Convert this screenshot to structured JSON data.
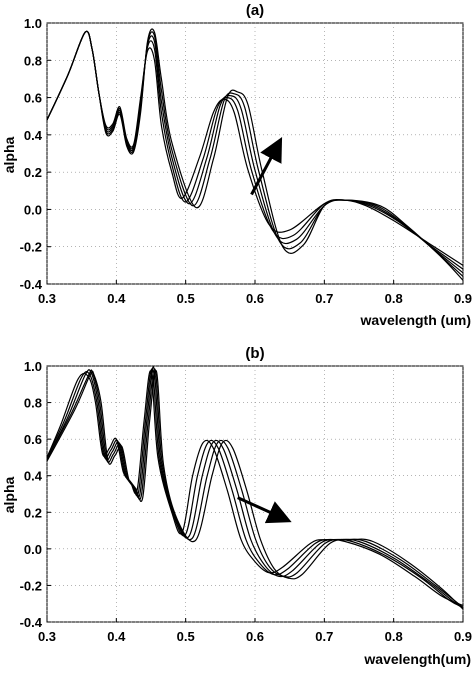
{
  "chart_data": [
    {
      "type": "line",
      "title": "(a)",
      "xlabel": "wavelength (um)",
      "ylabel": "alpha",
      "xlim": [
        0.3,
        0.9
      ],
      "ylim": [
        -0.4,
        1.0
      ],
      "xticks": [
        "0.3",
        "0.4",
        "0.5",
        "0.6",
        "0.7",
        "0.8",
        "0.9"
      ],
      "yticks": [
        "-0.4",
        "-0.2",
        "0.0",
        "0.2",
        "0.4",
        "0.6",
        "0.8",
        "1.0"
      ],
      "grid": "dotted",
      "line_color": "#000000",
      "arrow": {
        "from": [
          0.595,
          0.08
        ],
        "to": [
          0.635,
          0.36
        ]
      },
      "series": [
        {
          "x": [
            0.3,
            0.33,
            0.355,
            0.365,
            0.375,
            0.385,
            0.395,
            0.405,
            0.415,
            0.425,
            0.435,
            0.445,
            0.455,
            0.465,
            0.48,
            0.495,
            0.52,
            0.54,
            0.555,
            0.57,
            0.59,
            0.62,
            0.65,
            0.7,
            0.73,
            0.76,
            0.8,
            0.85,
            0.9
          ],
          "y": [
            0.48,
            0.72,
            0.95,
            0.86,
            0.62,
            0.45,
            0.46,
            0.55,
            0.38,
            0.35,
            0.6,
            0.85,
            0.8,
            0.45,
            0.2,
            0.06,
            0.28,
            0.52,
            0.59,
            0.52,
            0.21,
            -0.08,
            -0.11,
            0.03,
            0.05,
            0.02,
            -0.06,
            -0.18,
            -0.3
          ]
        },
        {
          "x": [
            0.3,
            0.33,
            0.355,
            0.365,
            0.375,
            0.385,
            0.395,
            0.405,
            0.415,
            0.425,
            0.435,
            0.445,
            0.455,
            0.465,
            0.48,
            0.5,
            0.525,
            0.545,
            0.56,
            0.575,
            0.595,
            0.625,
            0.655,
            0.7,
            0.73,
            0.765,
            0.805,
            0.855,
            0.9
          ],
          "y": [
            0.48,
            0.72,
            0.95,
            0.86,
            0.62,
            0.44,
            0.45,
            0.54,
            0.37,
            0.34,
            0.58,
            0.87,
            0.86,
            0.52,
            0.24,
            0.04,
            0.27,
            0.54,
            0.6,
            0.53,
            0.21,
            -0.11,
            -0.14,
            0.03,
            0.05,
            0.02,
            -0.06,
            -0.2,
            -0.32
          ]
        },
        {
          "x": [
            0.3,
            0.33,
            0.355,
            0.365,
            0.375,
            0.385,
            0.395,
            0.405,
            0.415,
            0.425,
            0.435,
            0.445,
            0.455,
            0.465,
            0.48,
            0.505,
            0.53,
            0.55,
            0.565,
            0.58,
            0.6,
            0.63,
            0.66,
            0.7,
            0.73,
            0.77,
            0.81,
            0.86,
            0.9
          ],
          "y": [
            0.48,
            0.72,
            0.95,
            0.86,
            0.62,
            0.43,
            0.44,
            0.53,
            0.36,
            0.33,
            0.56,
            0.88,
            0.9,
            0.58,
            0.28,
            0.03,
            0.27,
            0.56,
            0.61,
            0.54,
            0.21,
            -0.14,
            -0.16,
            0.02,
            0.05,
            0.02,
            -0.07,
            -0.22,
            -0.34
          ]
        },
        {
          "x": [
            0.3,
            0.33,
            0.355,
            0.365,
            0.375,
            0.385,
            0.395,
            0.405,
            0.415,
            0.425,
            0.435,
            0.445,
            0.455,
            0.465,
            0.48,
            0.51,
            0.535,
            0.555,
            0.57,
            0.585,
            0.605,
            0.635,
            0.665,
            0.7,
            0.73,
            0.775,
            0.815,
            0.865,
            0.9
          ],
          "y": [
            0.48,
            0.72,
            0.95,
            0.86,
            0.62,
            0.42,
            0.43,
            0.52,
            0.35,
            0.32,
            0.54,
            0.89,
            0.93,
            0.64,
            0.32,
            0.02,
            0.27,
            0.58,
            0.62,
            0.55,
            0.21,
            -0.17,
            -0.18,
            0.02,
            0.05,
            0.02,
            -0.08,
            -0.24,
            -0.36
          ]
        },
        {
          "x": [
            0.3,
            0.33,
            0.355,
            0.365,
            0.375,
            0.385,
            0.395,
            0.405,
            0.415,
            0.425,
            0.435,
            0.445,
            0.455,
            0.465,
            0.48,
            0.515,
            0.54,
            0.56,
            0.575,
            0.59,
            0.61,
            0.64,
            0.67,
            0.7,
            0.73,
            0.78,
            0.82,
            0.87,
            0.9
          ],
          "y": [
            0.48,
            0.72,
            0.95,
            0.86,
            0.62,
            0.41,
            0.42,
            0.51,
            0.34,
            0.31,
            0.52,
            0.9,
            0.95,
            0.7,
            0.36,
            0.01,
            0.27,
            0.6,
            0.63,
            0.56,
            0.21,
            -0.2,
            -0.19,
            0.02,
            0.05,
            0.02,
            -0.09,
            -0.26,
            -0.38
          ]
        }
      ]
    },
    {
      "type": "line",
      "title": "(b)",
      "xlabel": "wavelength(um)",
      "ylabel": "alpha",
      "xlim": [
        0.3,
        0.9
      ],
      "ylim": [
        -0.4,
        1.0
      ],
      "xticks": [
        "0.3",
        "0.4",
        "0.5",
        "0.6",
        "0.7",
        "0.8",
        "0.9"
      ],
      "yticks": [
        "-0.4",
        "-0.2",
        "0.0",
        "0.2",
        "0.4",
        "0.6",
        "0.8",
        "1.0"
      ],
      "grid": "dotted",
      "line_color": "#000000",
      "arrow": {
        "from": [
          0.575,
          0.28
        ],
        "to": [
          0.645,
          0.16
        ]
      },
      "series": [
        {
          "x": [
            0.3,
            0.32,
            0.345,
            0.36,
            0.37,
            0.38,
            0.39,
            0.4,
            0.41,
            0.42,
            0.43,
            0.44,
            0.45,
            0.46,
            0.48,
            0.495,
            0.51,
            0.525,
            0.54,
            0.56,
            0.58,
            0.6,
            0.62,
            0.64,
            0.68,
            0.7,
            0.73,
            0.78,
            0.83,
            0.87,
            0.9
          ],
          "y": [
            0.5,
            0.68,
            0.93,
            0.94,
            0.8,
            0.52,
            0.55,
            0.6,
            0.42,
            0.37,
            0.32,
            0.7,
            0.97,
            0.5,
            0.2,
            0.09,
            0.4,
            0.58,
            0.55,
            0.32,
            0.05,
            -0.07,
            -0.13,
            -0.1,
            0.03,
            0.05,
            0.04,
            -0.03,
            -0.15,
            -0.26,
            -0.31
          ]
        },
        {
          "x": [
            0.3,
            0.325,
            0.35,
            0.362,
            0.372,
            0.382,
            0.392,
            0.402,
            0.412,
            0.422,
            0.432,
            0.442,
            0.452,
            0.462,
            0.482,
            0.5,
            0.517,
            0.532,
            0.547,
            0.567,
            0.587,
            0.607,
            0.627,
            0.647,
            0.687,
            0.71,
            0.74,
            0.79,
            0.84,
            0.88,
            0.9
          ],
          "y": [
            0.5,
            0.7,
            0.94,
            0.95,
            0.8,
            0.51,
            0.54,
            0.59,
            0.41,
            0.36,
            0.31,
            0.7,
            0.98,
            0.49,
            0.19,
            0.08,
            0.4,
            0.58,
            0.55,
            0.32,
            0.05,
            -0.08,
            -0.14,
            -0.11,
            0.03,
            0.05,
            0.04,
            -0.04,
            -0.16,
            -0.28,
            -0.32
          ]
        },
        {
          "x": [
            0.3,
            0.33,
            0.355,
            0.364,
            0.374,
            0.384,
            0.394,
            0.404,
            0.414,
            0.424,
            0.434,
            0.444,
            0.454,
            0.464,
            0.484,
            0.505,
            0.524,
            0.539,
            0.554,
            0.574,
            0.594,
            0.614,
            0.634,
            0.654,
            0.694,
            0.72,
            0.75,
            0.8,
            0.85,
            0.89,
            0.9
          ],
          "y": [
            0.49,
            0.72,
            0.95,
            0.96,
            0.8,
            0.5,
            0.53,
            0.58,
            0.4,
            0.35,
            0.3,
            0.7,
            0.99,
            0.48,
            0.18,
            0.07,
            0.4,
            0.58,
            0.55,
            0.32,
            0.05,
            -0.09,
            -0.15,
            -0.12,
            0.03,
            0.05,
            0.04,
            -0.05,
            -0.18,
            -0.3,
            -0.32
          ]
        },
        {
          "x": [
            0.3,
            0.335,
            0.36,
            0.366,
            0.376,
            0.386,
            0.396,
            0.406,
            0.416,
            0.426,
            0.436,
            0.446,
            0.456,
            0.466,
            0.486,
            0.51,
            0.531,
            0.546,
            0.561,
            0.581,
            0.601,
            0.621,
            0.641,
            0.661,
            0.701,
            0.73,
            0.76,
            0.81,
            0.86,
            0.9
          ],
          "y": [
            0.49,
            0.74,
            0.95,
            0.96,
            0.8,
            0.49,
            0.52,
            0.57,
            0.39,
            0.34,
            0.29,
            0.7,
            0.98,
            0.47,
            0.17,
            0.06,
            0.4,
            0.58,
            0.55,
            0.32,
            0.05,
            -0.1,
            -0.15,
            -0.13,
            0.03,
            0.05,
            0.04,
            -0.06,
            -0.2,
            -0.32
          ]
        },
        {
          "x": [
            0.3,
            0.34,
            0.362,
            0.368,
            0.378,
            0.388,
            0.398,
            0.408,
            0.418,
            0.428,
            0.438,
            0.448,
            0.458,
            0.468,
            0.488,
            0.515,
            0.538,
            0.553,
            0.568,
            0.588,
            0.608,
            0.628,
            0.648,
            0.668,
            0.708,
            0.74,
            0.77,
            0.82,
            0.87,
            0.9
          ],
          "y": [
            0.48,
            0.76,
            0.95,
            0.95,
            0.8,
            0.48,
            0.51,
            0.56,
            0.38,
            0.33,
            0.28,
            0.7,
            0.97,
            0.46,
            0.16,
            0.05,
            0.4,
            0.58,
            0.55,
            0.32,
            0.05,
            -0.11,
            -0.16,
            -0.14,
            0.03,
            0.05,
            0.04,
            -0.07,
            -0.22,
            -0.33
          ]
        }
      ]
    }
  ]
}
